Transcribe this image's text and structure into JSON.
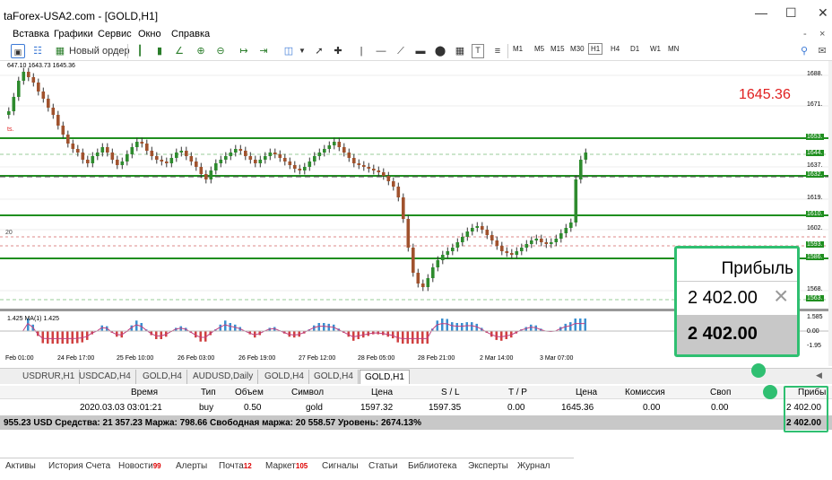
{
  "window": {
    "title": "taForex-USA2.com - [GOLD,H1]"
  },
  "menu": [
    "Вставка",
    "Графики",
    "Сервис",
    "Окно",
    "Справка"
  ],
  "toolbar": {
    "new_order_label": "Новый ордер",
    "timeframes": [
      "M1",
      "M5",
      "M15",
      "M30",
      "H1",
      "H4",
      "D1",
      "W1",
      "MN"
    ]
  },
  "chart": {
    "info": "647.10 1643.73 1645.36",
    "current_price": "1645.36",
    "marker_text": "ts.",
    "level_zero_label": "20",
    "price_labels": [
      "1688.",
      "1671.",
      "1653.",
      "1644.",
      "1637.",
      "1632.",
      "1619.",
      "1610.",
      "1602.",
      "1593.",
      "1586.",
      "1568.",
      "1563."
    ],
    "osc_labels": [
      "1.585",
      "0.00",
      "-1.95"
    ],
    "indicator_label": "1.425  MA(1) 1.425",
    "time_labels": [
      "Feb 01:00",
      "24 Feb 17:00",
      "25 Feb 10:00",
      "26 Feb 03:00",
      "26 Feb 19:00",
      "27 Feb 12:00",
      "28 Feb 05:00",
      "28 Feb 21:00",
      "2 Mar 14:00",
      "3 Mar 07:00"
    ]
  },
  "chart_tabs": [
    "USDRUR,H1",
    "USDCAD,H4",
    "GOLD,H4",
    "AUDUSD,Daily",
    "GOLD,H4",
    "GOLD,H4",
    "GOLD,H1"
  ],
  "table": {
    "headers": {
      "time": "Время",
      "type": "Тип",
      "volume": "Объем",
      "symbol": "Символ",
      "price": "Цена",
      "sl": "S / L",
      "tp": "T / P",
      "cur_price": "Цена",
      "commission": "Комиссия",
      "swap": "Своп",
      "profit": "Прибы"
    },
    "row": {
      "time": "2020.03.03 03:01:21",
      "type": "buy",
      "volume": "0.50",
      "symbol": "gold",
      "price": "1597.32",
      "sl": "1597.35",
      "tp": "0.00",
      "cur_price": "1645.36",
      "commission": "0.00",
      "swap": "0.00",
      "profit": "2 402.00"
    },
    "summary": "955.23 USD  Средства: 21 357.23  Маржа: 798.66  Свободная маржа: 20 558.57  Уровень: 2674.13%",
    "summary_profit": "2 402.00"
  },
  "bottom_tabs": [
    {
      "label": "Активы",
      "count": ""
    },
    {
      "label": "История Счета",
      "count": ""
    },
    {
      "label": "Новости",
      "count": "99"
    },
    {
      "label": "Алерты",
      "count": ""
    },
    {
      "label": "Почта",
      "count": "12"
    },
    {
      "label": "Маркет",
      "count": "105"
    },
    {
      "label": "Сигналы",
      "count": ""
    },
    {
      "label": "Статьи",
      "count": ""
    },
    {
      "label": "Библиотека",
      "count": ""
    },
    {
      "label": "Эксперты",
      "count": ""
    },
    {
      "label": "Журнал",
      "count": ""
    }
  ],
  "callout": {
    "header": "Прибыль",
    "value": "2 402.00",
    "value_bold": "2 402.00"
  },
  "colors": {
    "accent": "#2fbf71",
    "bull": "#2e8b2e",
    "bear": "#a0522d",
    "level": "#1f8f1f",
    "price": "#e02020"
  }
}
